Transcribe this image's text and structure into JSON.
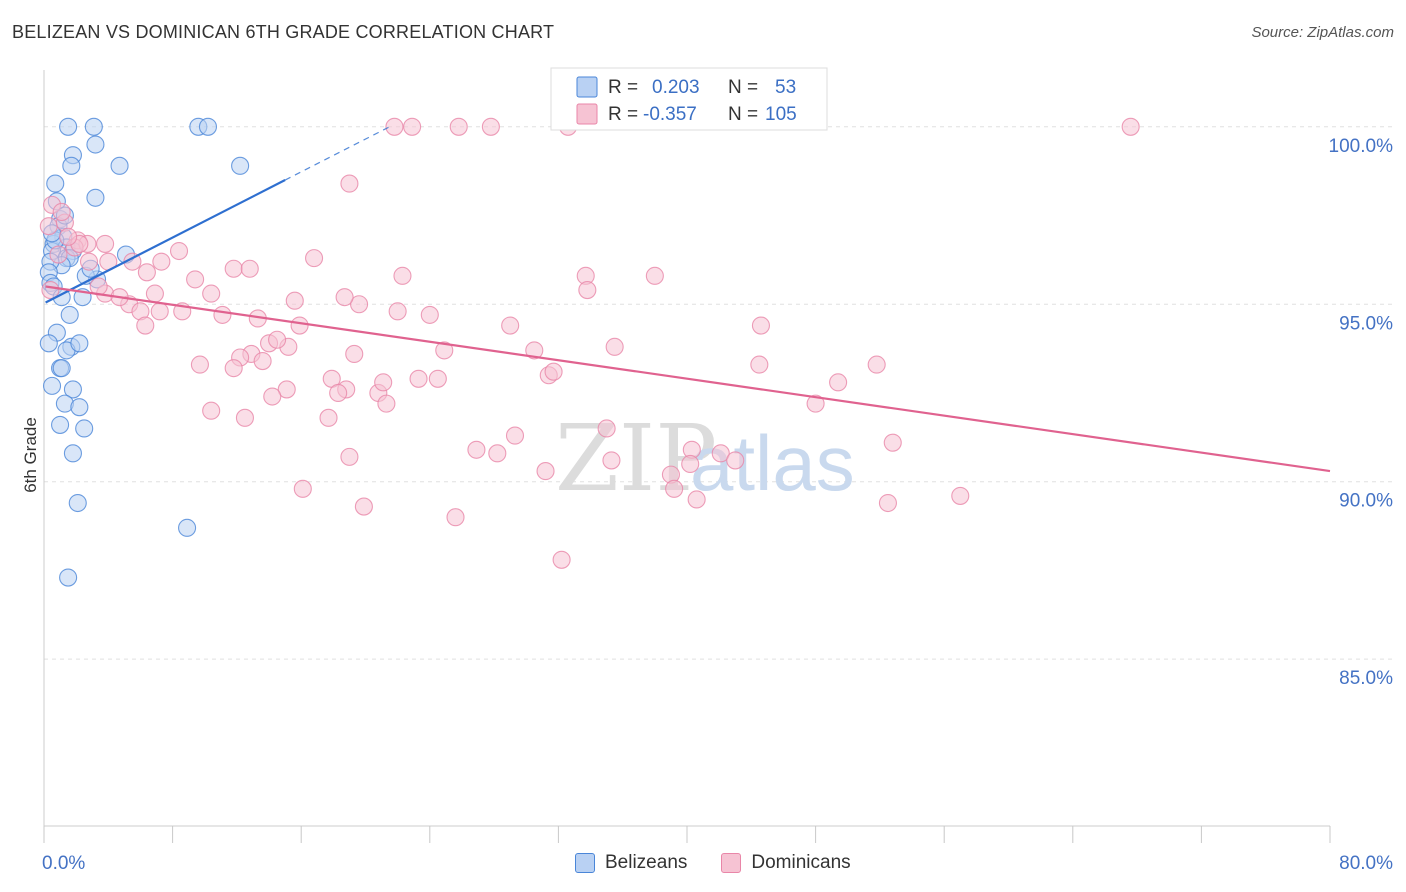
{
  "title": "BELIZEAN VS DOMINICAN 6TH GRADE CORRELATION CHART",
  "source": "Source: ZipAtlas.com",
  "watermark": {
    "zip": "ZIP",
    "atlas": "atlas"
  },
  "colors": {
    "blue": "#4a86d8",
    "blue_fill": "#b9d1f3",
    "blue_line": "#2e6fd0",
    "pink": "#e986a8",
    "pink_fill": "#f6c3d3",
    "pink_line": "#e0628f",
    "axis_label": "#4472c4",
    "grid": "#e0e0e0"
  },
  "legend_box": {
    "rows": [
      {
        "r_label": "R =",
        "r_value": "0.203",
        "n_label": "N =",
        "n_value": "53",
        "series": "blue"
      },
      {
        "r_label": "R =",
        "r_value": "-0.357",
        "n_label": "N =",
        "n_value": "105",
        "series": "pink"
      }
    ]
  },
  "legend_bottom": [
    {
      "label": "Belizeans",
      "series": "blue"
    },
    {
      "label": "Dominicans",
      "series": "pink"
    }
  ],
  "chart_data": {
    "type": "scatter",
    "title": "BELIZEAN VS DOMINICAN 6TH GRADE CORRELATION CHART",
    "xlabel": "",
    "ylabel": "6th Grade",
    "xlim": [
      0,
      80
    ],
    "ylim": [
      80.3,
      101.6
    ],
    "x_tick_labels": [
      {
        "value": 0,
        "label": "0.0%"
      },
      {
        "value": 80,
        "label": "80.0%"
      }
    ],
    "x_minor_ticks": [
      0,
      8,
      16,
      24,
      32,
      40,
      48,
      56,
      64,
      72,
      80
    ],
    "y_ticks": [
      {
        "value": 100,
        "label": "100.0%"
      },
      {
        "value": 95,
        "label": "95.0%"
      },
      {
        "value": 90,
        "label": "90.0%"
      },
      {
        "value": 85,
        "label": "85.0%"
      }
    ],
    "grid": true,
    "series": [
      {
        "name": "Belizeans",
        "color": "blue",
        "r": 0.203,
        "n": 53,
        "trend": {
          "x0": 0.1,
          "y0": 95.05,
          "x1": 15.0,
          "y1": 98.5,
          "dash_to_x": 21.5,
          "dash_to_y": 100.0
        },
        "points": [
          [
            1.5,
            100.0
          ],
          [
            3.1,
            100.0
          ],
          [
            9.6,
            100.0
          ],
          [
            10.2,
            100.0
          ],
          [
            1.8,
            99.2
          ],
          [
            3.2,
            99.5
          ],
          [
            4.7,
            98.9
          ],
          [
            12.2,
            98.9
          ],
          [
            1.7,
            98.9
          ],
          [
            0.7,
            98.4
          ],
          [
            3.2,
            98.0
          ],
          [
            0.8,
            97.9
          ],
          [
            1.0,
            97.4
          ],
          [
            0.9,
            97.2
          ],
          [
            1.2,
            96.9
          ],
          [
            0.6,
            96.7
          ],
          [
            1.4,
            96.6
          ],
          [
            1.8,
            96.5
          ],
          [
            0.5,
            96.5
          ],
          [
            5.1,
            96.4
          ],
          [
            1.4,
            96.3
          ],
          [
            1.6,
            96.3
          ],
          [
            1.1,
            96.1
          ],
          [
            0.4,
            96.2
          ],
          [
            0.3,
            95.9
          ],
          [
            3.3,
            95.7
          ],
          [
            2.6,
            95.8
          ],
          [
            0.4,
            95.6
          ],
          [
            0.6,
            95.5
          ],
          [
            1.1,
            95.2
          ],
          [
            2.4,
            95.2
          ],
          [
            1.6,
            94.7
          ],
          [
            0.8,
            94.2
          ],
          [
            0.3,
            93.9
          ],
          [
            1.7,
            93.8
          ],
          [
            1.4,
            93.7
          ],
          [
            2.2,
            93.9
          ],
          [
            1.0,
            93.2
          ],
          [
            1.1,
            93.2
          ],
          [
            0.5,
            92.7
          ],
          [
            1.8,
            92.6
          ],
          [
            1.3,
            92.2
          ],
          [
            2.2,
            92.1
          ],
          [
            1.0,
            91.6
          ],
          [
            2.5,
            91.5
          ],
          [
            1.8,
            90.8
          ],
          [
            2.1,
            89.4
          ],
          [
            8.9,
            88.7
          ],
          [
            1.5,
            87.3
          ],
          [
            0.7,
            96.8
          ],
          [
            1.3,
            97.5
          ],
          [
            0.5,
            97.0
          ],
          [
            2.9,
            96.0
          ]
        ]
      },
      {
        "name": "Dominicans",
        "color": "pink",
        "r": -0.357,
        "n": 105,
        "trend": {
          "x0": 0.1,
          "y0": 95.5,
          "x1": 80.0,
          "y1": 90.3
        },
        "points": [
          [
            21.8,
            100.0
          ],
          [
            22.9,
            100.0
          ],
          [
            25.8,
            100.0
          ],
          [
            27.8,
            100.0
          ],
          [
            32.6,
            100.0
          ],
          [
            67.6,
            100.0
          ],
          [
            19.0,
            98.4
          ],
          [
            0.5,
            97.8
          ],
          [
            0.3,
            97.2
          ],
          [
            1.3,
            97.3
          ],
          [
            1.1,
            97.6
          ],
          [
            2.1,
            96.8
          ],
          [
            2.7,
            96.7
          ],
          [
            3.8,
            96.7
          ],
          [
            1.9,
            96.6
          ],
          [
            8.4,
            96.5
          ],
          [
            16.8,
            96.3
          ],
          [
            4.0,
            96.2
          ],
          [
            5.5,
            96.2
          ],
          [
            11.8,
            96.0
          ],
          [
            12.8,
            96.0
          ],
          [
            2.8,
            96.2
          ],
          [
            7.3,
            96.2
          ],
          [
            6.4,
            95.9
          ],
          [
            22.3,
            95.8
          ],
          [
            33.7,
            95.8
          ],
          [
            38.0,
            95.8
          ],
          [
            9.4,
            95.7
          ],
          [
            15.6,
            95.1
          ],
          [
            19.6,
            95.0
          ],
          [
            5.3,
            95.0
          ],
          [
            6.0,
            94.8
          ],
          [
            7.2,
            94.8
          ],
          [
            8.6,
            94.8
          ],
          [
            10.4,
            95.3
          ],
          [
            13.3,
            94.6
          ],
          [
            3.8,
            95.3
          ],
          [
            4.7,
            95.2
          ],
          [
            18.7,
            95.2
          ],
          [
            33.8,
            95.4
          ],
          [
            24.0,
            94.7
          ],
          [
            11.1,
            94.7
          ],
          [
            15.9,
            94.4
          ],
          [
            6.3,
            94.4
          ],
          [
            29.0,
            94.4
          ],
          [
            44.6,
            94.4
          ],
          [
            22.0,
            94.8
          ],
          [
            35.5,
            93.8
          ],
          [
            24.9,
            93.7
          ],
          [
            30.5,
            93.7
          ],
          [
            12.9,
            93.6
          ],
          [
            19.3,
            93.6
          ],
          [
            12.2,
            93.5
          ],
          [
            13.6,
            93.4
          ],
          [
            14.0,
            93.9
          ],
          [
            15.2,
            93.8
          ],
          [
            14.5,
            94.0
          ],
          [
            9.7,
            93.3
          ],
          [
            11.8,
            93.2
          ],
          [
            17.9,
            92.9
          ],
          [
            24.5,
            92.9
          ],
          [
            23.3,
            92.9
          ],
          [
            31.4,
            93.0
          ],
          [
            31.7,
            93.1
          ],
          [
            44.5,
            93.3
          ],
          [
            51.8,
            93.3
          ],
          [
            18.8,
            92.6
          ],
          [
            15.1,
            92.6
          ],
          [
            18.3,
            92.5
          ],
          [
            20.8,
            92.5
          ],
          [
            21.1,
            92.8
          ],
          [
            49.4,
            92.8
          ],
          [
            14.2,
            92.4
          ],
          [
            21.3,
            92.2
          ],
          [
            48.0,
            92.2
          ],
          [
            10.4,
            92.0
          ],
          [
            12.5,
            91.8
          ],
          [
            17.7,
            91.8
          ],
          [
            35.0,
            91.5
          ],
          [
            29.3,
            91.3
          ],
          [
            52.8,
            91.1
          ],
          [
            26.9,
            90.9
          ],
          [
            28.2,
            90.8
          ],
          [
            42.1,
            90.8
          ],
          [
            40.3,
            90.9
          ],
          [
            19.0,
            90.7
          ],
          [
            35.3,
            90.6
          ],
          [
            40.2,
            90.5
          ],
          [
            43.0,
            90.6
          ],
          [
            31.2,
            90.3
          ],
          [
            39.0,
            90.2
          ],
          [
            39.2,
            89.8
          ],
          [
            16.1,
            89.8
          ],
          [
            40.6,
            89.5
          ],
          [
            52.5,
            89.4
          ],
          [
            57.0,
            89.6
          ],
          [
            19.9,
            89.3
          ],
          [
            25.6,
            89.0
          ],
          [
            32.2,
            87.8
          ],
          [
            0.9,
            96.4
          ],
          [
            2.2,
            96.7
          ],
          [
            3.4,
            95.5
          ],
          [
            1.5,
            96.9
          ],
          [
            6.9,
            95.3
          ],
          [
            0.4,
            95.4
          ]
        ]
      }
    ]
  }
}
